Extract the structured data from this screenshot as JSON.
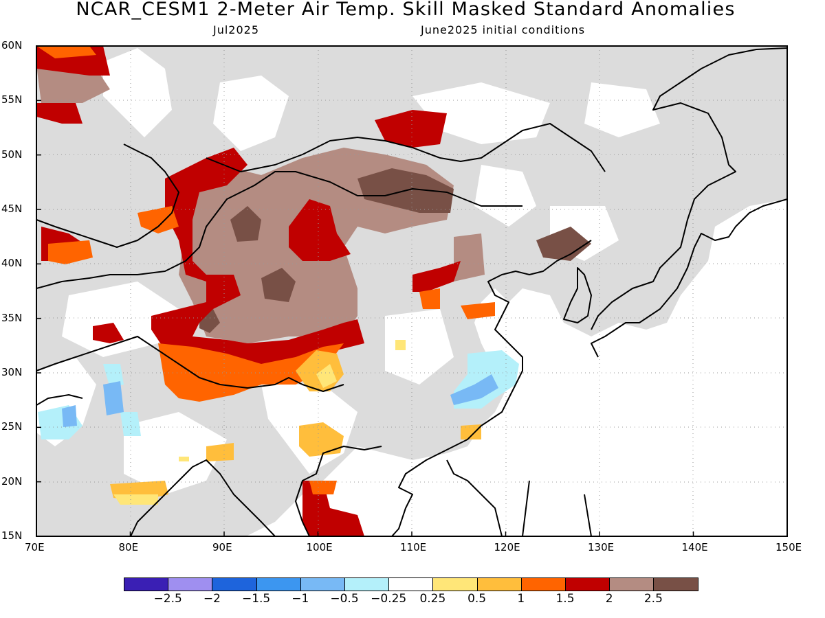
{
  "title": "NCAR_CESM1 2-Meter Air Temp. Skill Masked Standard Anomalies",
  "subtitle_left": "Jul2025",
  "subtitle_right": "June2025 initial conditions",
  "map": {
    "lon_range": [
      70,
      150
    ],
    "lat_range": [
      15,
      60
    ],
    "lat_ticks": [
      "60N",
      "55N",
      "50N",
      "45N",
      "40N",
      "35N",
      "30N",
      "25N",
      "20N",
      "15N"
    ],
    "lon_ticks": [
      "70E",
      "80E",
      "90E",
      "100E",
      "110E",
      "120E",
      "130E",
      "140E",
      "150E"
    ],
    "grid": "dotted",
    "masked_color": "#dcdcdc"
  },
  "colorbar": {
    "colors": [
      "#3a1fb4",
      "#9f8ff0",
      "#1e64dc",
      "#3c96f0",
      "#78b9f5",
      "#b4f0fa",
      "#ffffff",
      "#ffe678",
      "#ffbe3c",
      "#ff6400",
      "#c00000",
      "#b48c82",
      "#785046"
    ],
    "labels": [
      "-2.5",
      "-2",
      "-1.5",
      "-1",
      "-0.5",
      "-0.25",
      "0.25",
      "0.5",
      "1",
      "1.5",
      "2",
      "2.5"
    ]
  }
}
